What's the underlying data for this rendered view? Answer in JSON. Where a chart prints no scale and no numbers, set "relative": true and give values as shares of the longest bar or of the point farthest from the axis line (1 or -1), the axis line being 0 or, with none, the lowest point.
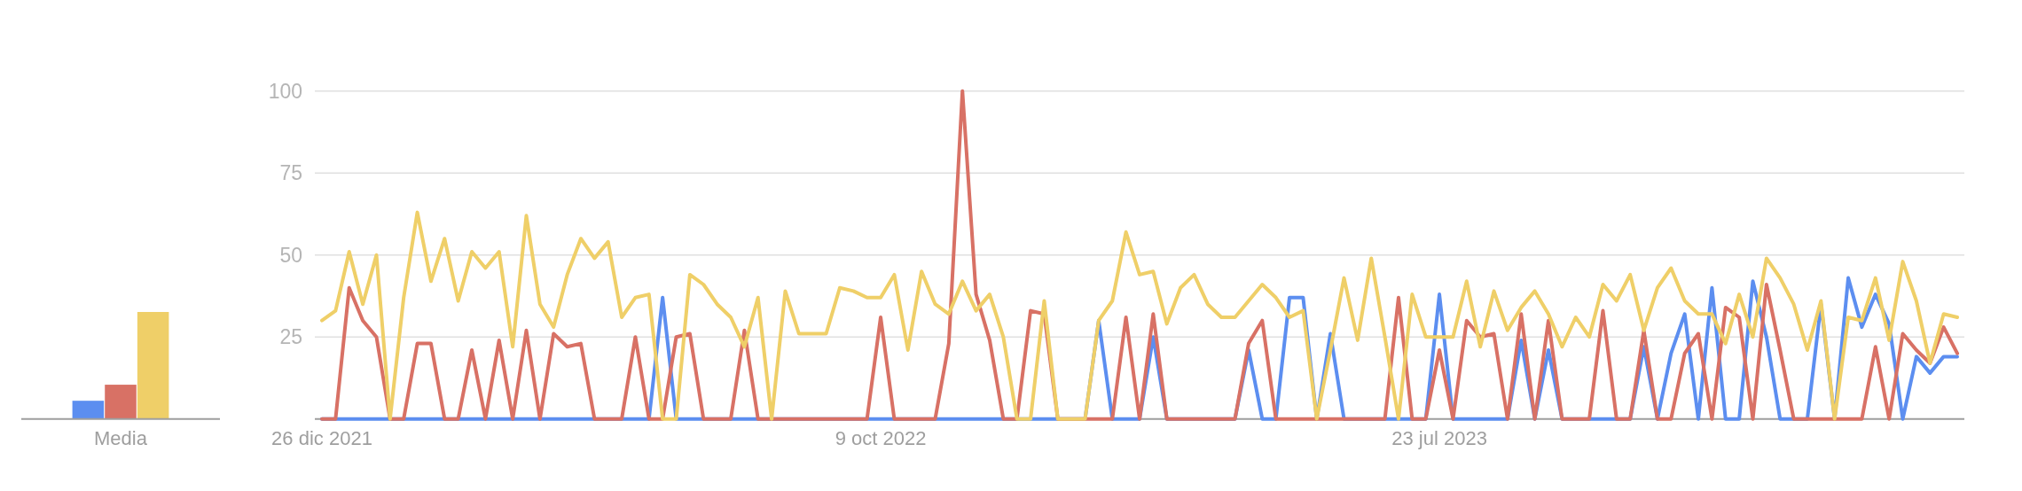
{
  "chart_data": [
    {
      "type": "bar",
      "categories": [
        "Media"
      ],
      "relative": true,
      "series": [
        {
          "color": "#5c8ef0",
          "values": [
            0.17
          ]
        },
        {
          "color": "#d87165",
          "values": [
            0.32
          ]
        },
        {
          "color": "#efcf68",
          "values": [
            1
          ]
        }
      ]
    },
    {
      "type": "line",
      "grid": "y",
      "ylim": [
        0,
        100
      ],
      "yticks": [
        {
          "value": 0,
          "label": null
        },
        25,
        50,
        75,
        100
      ],
      "categories": [
        "26 dic 2021",
        null,
        null,
        null,
        null,
        null,
        null,
        null,
        null,
        null,
        null,
        null,
        null,
        null,
        null,
        null,
        null,
        null,
        null,
        null,
        null,
        null,
        null,
        null,
        null,
        null,
        null,
        null,
        null,
        null,
        null,
        null,
        null,
        null,
        null,
        null,
        null,
        null,
        null,
        null,
        null,
        "9 oct 2022",
        null,
        null,
        null,
        null,
        null,
        null,
        null,
        null,
        null,
        null,
        null,
        null,
        null,
        null,
        null,
        null,
        null,
        null,
        null,
        null,
        null,
        null,
        null,
        null,
        null,
        null,
        null,
        null,
        null,
        null,
        null,
        null,
        null,
        null,
        null,
        null,
        null,
        null,
        null,
        null,
        "23 jul 2023",
        null,
        null,
        null,
        null,
        null,
        null,
        null,
        null,
        null,
        null,
        null,
        null,
        null,
        null,
        null,
        null,
        null,
        null,
        null,
        null,
        null,
        null,
        null,
        null,
        null,
        null,
        null,
        null,
        null,
        null,
        null,
        null,
        null,
        null,
        null,
        null,
        null,
        null
      ],
      "series": [
        {
          "color": "#5c8ef0",
          "values": [
            0,
            0,
            0,
            0,
            0,
            0,
            0,
            0,
            0,
            0,
            0,
            0,
            0,
            0,
            0,
            0,
            0,
            0,
            0,
            0,
            0,
            0,
            0,
            0,
            0,
            37,
            0,
            0,
            0,
            0,
            0,
            0,
            0,
            0,
            0,
            0,
            0,
            0,
            0,
            0,
            0,
            0,
            0,
            0,
            0,
            0,
            0,
            0,
            0,
            0,
            0,
            0,
            0,
            0,
            0,
            0,
            0,
            30,
            0,
            0,
            0,
            25,
            0,
            0,
            0,
            0,
            0,
            0,
            21,
            0,
            0,
            37,
            37,
            0,
            26,
            0,
            0,
            0,
            0,
            0,
            0,
            0,
            38,
            0,
            0,
            0,
            0,
            0,
            24,
            0,
            21,
            0,
            0,
            0,
            0,
            0,
            0,
            22,
            0,
            20,
            32,
            0,
            40,
            0,
            0,
            42,
            25,
            0,
            0,
            0,
            35,
            0,
            43,
            28,
            38,
            29,
            0,
            19,
            14,
            19,
            19
          ]
        },
        {
          "color": "#d87165",
          "values": [
            0,
            0,
            40,
            30,
            25,
            0,
            0,
            23,
            23,
            0,
            0,
            21,
            0,
            24,
            0,
            27,
            0,
            26,
            22,
            23,
            0,
            0,
            0,
            25,
            0,
            0,
            25,
            26,
            0,
            0,
            0,
            27,
            0,
            0,
            0,
            0,
            0,
            0,
            0,
            0,
            0,
            31,
            0,
            0,
            0,
            0,
            23,
            100,
            38,
            24,
            0,
            0,
            33,
            32,
            0,
            0,
            0,
            0,
            0,
            31,
            0,
            32,
            0,
            0,
            0,
            0,
            0,
            0,
            23,
            30,
            0,
            0,
            0,
            0,
            0,
            0,
            0,
            0,
            0,
            37,
            0,
            0,
            21,
            0,
            30,
            25,
            26,
            0,
            32,
            0,
            30,
            0,
            0,
            0,
            33,
            0,
            0,
            27,
            0,
            0,
            20,
            26,
            0,
            34,
            31,
            0,
            41,
            21,
            0,
            0,
            0,
            0,
            0,
            0,
            22,
            0,
            26,
            21,
            17,
            28,
            20
          ]
        },
        {
          "color": "#efcf68",
          "values": [
            30,
            33,
            51,
            35,
            50,
            0,
            37,
            63,
            42,
            55,
            36,
            51,
            46,
            51,
            22,
            62,
            35,
            28,
            44,
            55,
            49,
            54,
            31,
            37,
            38,
            0,
            0,
            44,
            41,
            35,
            31,
            22,
            37,
            0,
            39,
            26,
            26,
            26,
            40,
            39,
            37,
            37,
            44,
            21,
            45,
            35,
            32,
            42,
            33,
            38,
            25,
            0,
            0,
            36,
            0,
            0,
            0,
            30,
            36,
            57,
            44,
            45,
            29,
            40,
            44,
            35,
            31,
            31,
            36,
            41,
            37,
            31,
            33,
            0,
            21,
            43,
            24,
            49,
            25,
            0,
            38,
            25,
            25,
            25,
            42,
            22,
            39,
            27,
            34,
            39,
            32,
            22,
            31,
            25,
            41,
            36,
            44,
            27,
            40,
            46,
            36,
            32,
            32,
            23,
            38,
            25,
            49,
            43,
            35,
            21,
            36,
            0,
            31,
            30,
            43,
            24,
            48,
            36,
            17,
            32,
            31
          ]
        }
      ]
    }
  ]
}
